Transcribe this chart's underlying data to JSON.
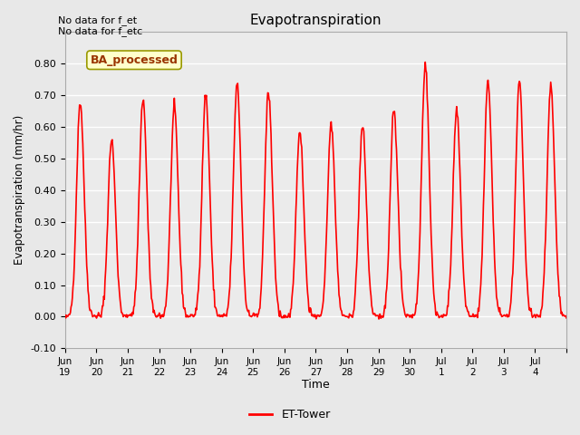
{
  "title": "Evapotranspiration",
  "ylabel": "Evapotranspiration (mm/hr)",
  "xlabel": "Time",
  "ylim": [
    -0.1,
    0.9
  ],
  "yticks": [
    -0.1,
    0.0,
    0.1,
    0.2,
    0.3,
    0.4,
    0.5,
    0.6,
    0.7,
    0.8
  ],
  "line_color": "red",
  "line_width": 1.2,
  "background_color": "#e8e8e8",
  "plot_bg_color": "#ebebeb",
  "annotation_text1": "No data for f_et",
  "annotation_text2": "No data for f_etc",
  "box_label": "BA_processed",
  "box_facecolor": "#ffffcc",
  "box_edgecolor": "#999900",
  "legend_label": "ET-Tower",
  "n_days": 16,
  "daily_peaks": [
    0.68,
    0.56,
    0.69,
    0.66,
    0.7,
    0.74,
    0.71,
    0.59,
    0.61,
    0.6,
    0.66,
    0.8,
    0.65,
    0.75,
    0.74,
    0.73
  ],
  "tick_positions": [
    0,
    1,
    2,
    3,
    4,
    5,
    6,
    7,
    8,
    9,
    10,
    11,
    12,
    13,
    14,
    15,
    16
  ],
  "tick_labels": [
    "Jun\n19",
    "Jun\n20",
    "Jun\n21",
    "Jun\n22",
    "Jun\n23",
    "Jun\n24",
    "Jun\n25",
    "Jun\n26",
    "Jun\n27",
    "Jun\n28",
    "Jun\n29",
    "Jun\n30",
    "Jul\n1",
    "Jul\n2",
    "Jul\n3",
    "Jul\n4",
    ""
  ]
}
